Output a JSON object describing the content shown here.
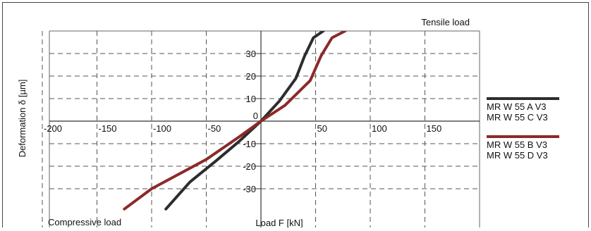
{
  "chart_data": {
    "type": "line",
    "title": "",
    "xlabel": "Load F [kN]",
    "ylabel": "Deformation δ [µm]",
    "annotations": {
      "positive_x": "Tensile load",
      "negative_x": "Compressive load"
    },
    "xlim": [
      -250,
      200
    ],
    "ylim": [
      -40,
      40
    ],
    "grid": true,
    "legend_position": "right",
    "x_ticks": [
      -200,
      -150,
      -100,
      -50,
      0,
      50,
      100,
      150
    ],
    "x_tick_labels": [
      "-200",
      "-150",
      "-100",
      "-50",
      "0",
      "50",
      "100",
      "150"
    ],
    "y_ticks": [
      -30,
      -20,
      -10,
      0,
      10,
      20,
      30
    ],
    "y_tick_labels": [
      "-30",
      "-20",
      "-10",
      "",
      "10",
      "20",
      "30"
    ],
    "series": [
      {
        "name": "MR W 55 A V3\nMR W 55 C V3",
        "legend_lines": [
          "MR W 55 A V3",
          "MR W 55 C V3"
        ],
        "color": "#2d2d2d",
        "x": [
          -87,
          -65,
          -42,
          -20,
          0,
          17,
          32,
          40,
          48,
          57
        ],
        "y": [
          -39,
          -27,
          -18,
          -9,
          0,
          9,
          19,
          29,
          37,
          40
        ]
      },
      {
        "name": "MR W 55 B V3\nMR W 55 D V3",
        "legend_lines": [
          "MR W 55 B V3",
          "MR W 55 D V3"
        ],
        "color": "#8b2a2a",
        "x": [
          -125,
          -100,
          -50,
          -20,
          0,
          22,
          45,
          55,
          65,
          77
        ],
        "y": [
          -39,
          -30,
          -17,
          -7,
          0,
          7,
          18,
          29,
          37,
          40
        ]
      }
    ]
  }
}
